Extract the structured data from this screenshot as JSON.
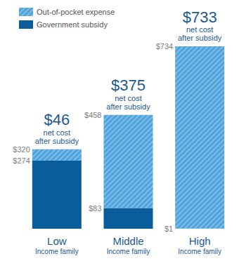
{
  "chart_data": {
    "type": "bar",
    "stacked": true,
    "categories": [
      "Low",
      "Middle",
      "High"
    ],
    "category_subtitle": "Income family",
    "series": [
      {
        "name": "Out-of-pocket expense",
        "color": "#4fa3dc",
        "values": [
          46,
          375,
          733
        ],
        "value_labels": [
          "$46",
          "$375",
          "$733"
        ],
        "annotation": "net cost after subsidy"
      },
      {
        "name": "Government subsidy",
        "color": "#0b5c9a",
        "values": [
          274,
          83,
          1
        ],
        "value_labels": [
          "$274",
          "$83",
          "$1"
        ]
      }
    ],
    "totals": [
      320,
      458,
      734
    ],
    "total_labels": [
      "$320",
      "$458",
      "$734"
    ],
    "ylim": [
      0,
      734
    ],
    "grid": false,
    "tick_labels": false,
    "data_labels": true,
    "legend": "top-left"
  }
}
